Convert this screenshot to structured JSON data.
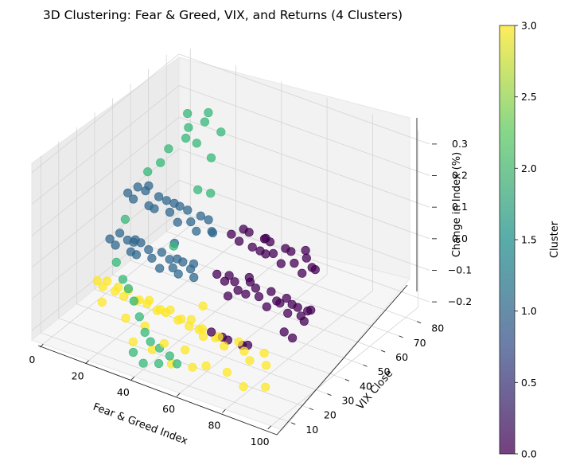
{
  "chart_data": {
    "type": "scatter",
    "projection": "3d",
    "title": "3D Clustering: Fear & Greed, VIX, and Returns (4 Clusters)",
    "xlabel": "Fear & Greed Index",
    "ylabel": "VIX Close",
    "zlabel": "Change in Index (%)",
    "xlim": [
      -5,
      105
    ],
    "ylim": [
      5,
      87
    ],
    "zlim": [
      -0.23,
      0.33
    ],
    "x_ticks": [
      "0",
      "20",
      "40",
      "60",
      "80",
      "100"
    ],
    "y_ticks": [
      "10",
      "20",
      "30",
      "40",
      "50",
      "60",
      "70",
      "80"
    ],
    "z_ticks": [
      "−0.2",
      "−0.1",
      "0.0",
      "0.1",
      "0.2",
      "0.3"
    ],
    "grid": true,
    "colorbar": {
      "label": "Cluster",
      "min": 0.0,
      "max": 3.0,
      "ticks": [
        "0.0",
        "0.5",
        "1.0",
        "1.5",
        "2.0",
        "2.5",
        "3.0"
      ],
      "colormap": [
        "#440154",
        "#3b528b",
        "#21908d",
        "#5dc963",
        "#fde725"
      ]
    },
    "cluster_colors": {
      "0": "#440154",
      "1": "#31688e",
      "2": "#35b779",
      "3": "#fde725"
    },
    "marker_alpha": 0.75,
    "series": [
      {
        "cluster": 1,
        "points": [
          [
            8,
            42,
            0.1
          ],
          [
            10,
            45,
            0.11
          ],
          [
            12,
            40,
            0.1
          ],
          [
            15,
            43,
            0.12
          ],
          [
            18,
            41,
            0.09
          ],
          [
            20,
            44,
            0.11
          ],
          [
            22,
            39,
            0.1
          ],
          [
            25,
            42,
            0.12
          ],
          [
            28,
            40,
            0.1
          ],
          [
            30,
            43,
            0.11
          ],
          [
            33,
            38,
            0.09
          ],
          [
            35,
            41,
            0.12
          ],
          [
            38,
            39,
            0.1
          ],
          [
            40,
            42,
            0.11
          ],
          [
            42,
            37,
            0.09
          ],
          [
            45,
            40,
            0.12
          ],
          [
            48,
            38,
            0.1
          ],
          [
            50,
            36,
            0.11
          ],
          [
            14,
            46,
            0.12
          ],
          [
            26,
            45,
            0.1
          ],
          [
            8,
            32,
            0.0
          ],
          [
            10,
            35,
            0.01
          ],
          [
            12,
            30,
            0.0
          ],
          [
            15,
            33,
            0.01
          ],
          [
            18,
            31,
            -0.01
          ],
          [
            20,
            34,
            0.01
          ],
          [
            22,
            29,
            0.0
          ],
          [
            25,
            32,
            0.01
          ],
          [
            28,
            30,
            0.0
          ],
          [
            30,
            33,
            0.01
          ],
          [
            33,
            28,
            -0.01
          ],
          [
            35,
            31,
            0.01
          ],
          [
            38,
            29,
            0.0
          ],
          [
            40,
            32,
            0.01
          ],
          [
            42,
            27,
            0.0
          ],
          [
            45,
            30,
            0.01
          ],
          [
            48,
            28,
            0.0
          ],
          [
            16,
            36,
            0.0
          ],
          [
            36,
            34,
            0.0
          ],
          [
            44,
            33,
            0.01
          ],
          [
            20,
            30,
            0.03
          ],
          [
            34,
            35,
            0.04
          ]
        ]
      },
      {
        "cluster": 0,
        "points": [
          [
            55,
            40,
            0.1
          ],
          [
            58,
            43,
            0.11
          ],
          [
            60,
            38,
            0.1
          ],
          [
            62,
            41,
            0.12
          ],
          [
            65,
            39,
            0.09
          ],
          [
            68,
            42,
            0.11
          ],
          [
            70,
            37,
            0.1
          ],
          [
            72,
            40,
            0.12
          ],
          [
            75,
            38,
            0.1
          ],
          [
            78,
            41,
            0.11
          ],
          [
            80,
            36,
            0.09
          ],
          [
            82,
            39,
            0.12
          ],
          [
            85,
            37,
            0.1
          ],
          [
            88,
            40,
            0.11
          ],
          [
            90,
            35,
            0.09
          ],
          [
            92,
            38,
            0.1
          ],
          [
            95,
            36,
            0.11
          ],
          [
            67,
            44,
            0.1
          ],
          [
            86,
            42,
            0.12
          ],
          [
            74,
            35,
            0.11
          ],
          [
            55,
            32,
            0.01
          ],
          [
            58,
            35,
            0.0
          ],
          [
            60,
            30,
            0.01
          ],
          [
            62,
            33,
            0.0
          ],
          [
            65,
            31,
            -0.01
          ],
          [
            68,
            34,
            0.01
          ],
          [
            70,
            29,
            0.0
          ],
          [
            72,
            32,
            0.01
          ],
          [
            75,
            30,
            0.0
          ],
          [
            78,
            33,
            0.01
          ],
          [
            80,
            28,
            -0.01
          ],
          [
            82,
            31,
            0.0
          ],
          [
            85,
            29,
            0.01
          ],
          [
            88,
            32,
            0.0
          ],
          [
            90,
            27,
            0.0
          ],
          [
            92,
            30,
            0.01
          ],
          [
            95,
            28,
            0.0
          ],
          [
            97,
            31,
            0.01
          ],
          [
            98,
            26,
            0.0
          ],
          [
            66,
            36,
            0.01
          ],
          [
            84,
            34,
            0.0
          ],
          [
            94,
            33,
            -0.01
          ],
          [
            62,
            20,
            -0.1
          ],
          [
            66,
            21,
            -0.11
          ],
          [
            70,
            19,
            -0.1
          ],
          [
            74,
            22,
            -0.12
          ],
          [
            78,
            20,
            -0.1
          ],
          [
            90,
            25,
            -0.05
          ],
          [
            96,
            22,
            -0.04
          ],
          [
            63,
            28,
            -0.02
          ]
        ]
      },
      {
        "cluster": 3,
        "points": [
          [
            8,
            25,
            -0.1
          ],
          [
            10,
            28,
            -0.11
          ],
          [
            12,
            23,
            -0.1
          ],
          [
            15,
            26,
            -0.12
          ],
          [
            18,
            24,
            -0.09
          ],
          [
            20,
            27,
            -0.11
          ],
          [
            22,
            22,
            -0.1
          ],
          [
            25,
            25,
            -0.12
          ],
          [
            28,
            23,
            -0.1
          ],
          [
            30,
            26,
            -0.11
          ],
          [
            33,
            21,
            -0.09
          ],
          [
            35,
            24,
            -0.12
          ],
          [
            38,
            22,
            -0.1
          ],
          [
            40,
            25,
            -0.11
          ],
          [
            42,
            20,
            -0.09
          ],
          [
            45,
            23,
            -0.12
          ],
          [
            48,
            21,
            -0.1
          ],
          [
            50,
            24,
            -0.11
          ],
          [
            53,
            19,
            -0.1
          ],
          [
            55,
            22,
            -0.12
          ],
          [
            58,
            20,
            -0.1
          ],
          [
            60,
            18,
            -0.11
          ],
          [
            63,
            21,
            -0.12
          ],
          [
            66,
            19,
            -0.1
          ],
          [
            70,
            17,
            -0.11
          ],
          [
            74,
            20,
            -0.1
          ],
          [
            78,
            18,
            -0.11
          ],
          [
            82,
            16,
            -0.12
          ],
          [
            86,
            19,
            -0.1
          ],
          [
            90,
            15,
            -0.11
          ],
          [
            14,
            20,
            -0.13
          ],
          [
            26,
            18,
            -0.14
          ],
          [
            36,
            16,
            -0.13
          ],
          [
            46,
            14,
            -0.15
          ],
          [
            56,
            13,
            -0.14
          ],
          [
            66,
            12,
            -0.16
          ],
          [
            76,
            11,
            -0.15
          ],
          [
            84,
            10,
            -0.17
          ],
          [
            92,
            12,
            -0.16
          ],
          [
            52,
            28,
            -0.08
          ],
          [
            30,
            17,
            -0.2
          ],
          [
            40,
            15,
            -0.19
          ],
          [
            50,
            13,
            -0.2
          ],
          [
            60,
            12,
            -0.18
          ]
        ]
      },
      {
        "cluster": 2,
        "points": [
          [
            20,
            60,
            0.3
          ],
          [
            22,
            58,
            0.27
          ],
          [
            26,
            62,
            0.28
          ],
          [
            28,
            55,
            0.25
          ],
          [
            30,
            66,
            0.24
          ],
          [
            18,
            52,
            0.22
          ],
          [
            24,
            54,
            0.26
          ],
          [
            32,
            58,
            0.2
          ],
          [
            16,
            50,
            0.18
          ],
          [
            12,
            48,
            0.15
          ],
          [
            34,
            48,
            0.15
          ],
          [
            38,
            50,
            0.14
          ],
          [
            26,
            64,
            0.3
          ],
          [
            10,
            38,
            0.04
          ],
          [
            36,
            32,
            0.05
          ],
          [
            14,
            28,
            -0.04
          ],
          [
            20,
            24,
            -0.06
          ],
          [
            24,
            22,
            -0.07
          ],
          [
            28,
            20,
            -0.09
          ],
          [
            32,
            18,
            -0.12
          ],
          [
            36,
            16,
            -0.15
          ],
          [
            40,
            14,
            -0.16
          ],
          [
            44,
            14,
            -0.17
          ],
          [
            50,
            12,
            -0.17
          ],
          [
            54,
            11,
            -0.18
          ],
          [
            34,
            12,
            -0.2
          ],
          [
            40,
            10,
            -0.21
          ],
          [
            46,
            11,
            -0.2
          ]
        ]
      }
    ]
  }
}
